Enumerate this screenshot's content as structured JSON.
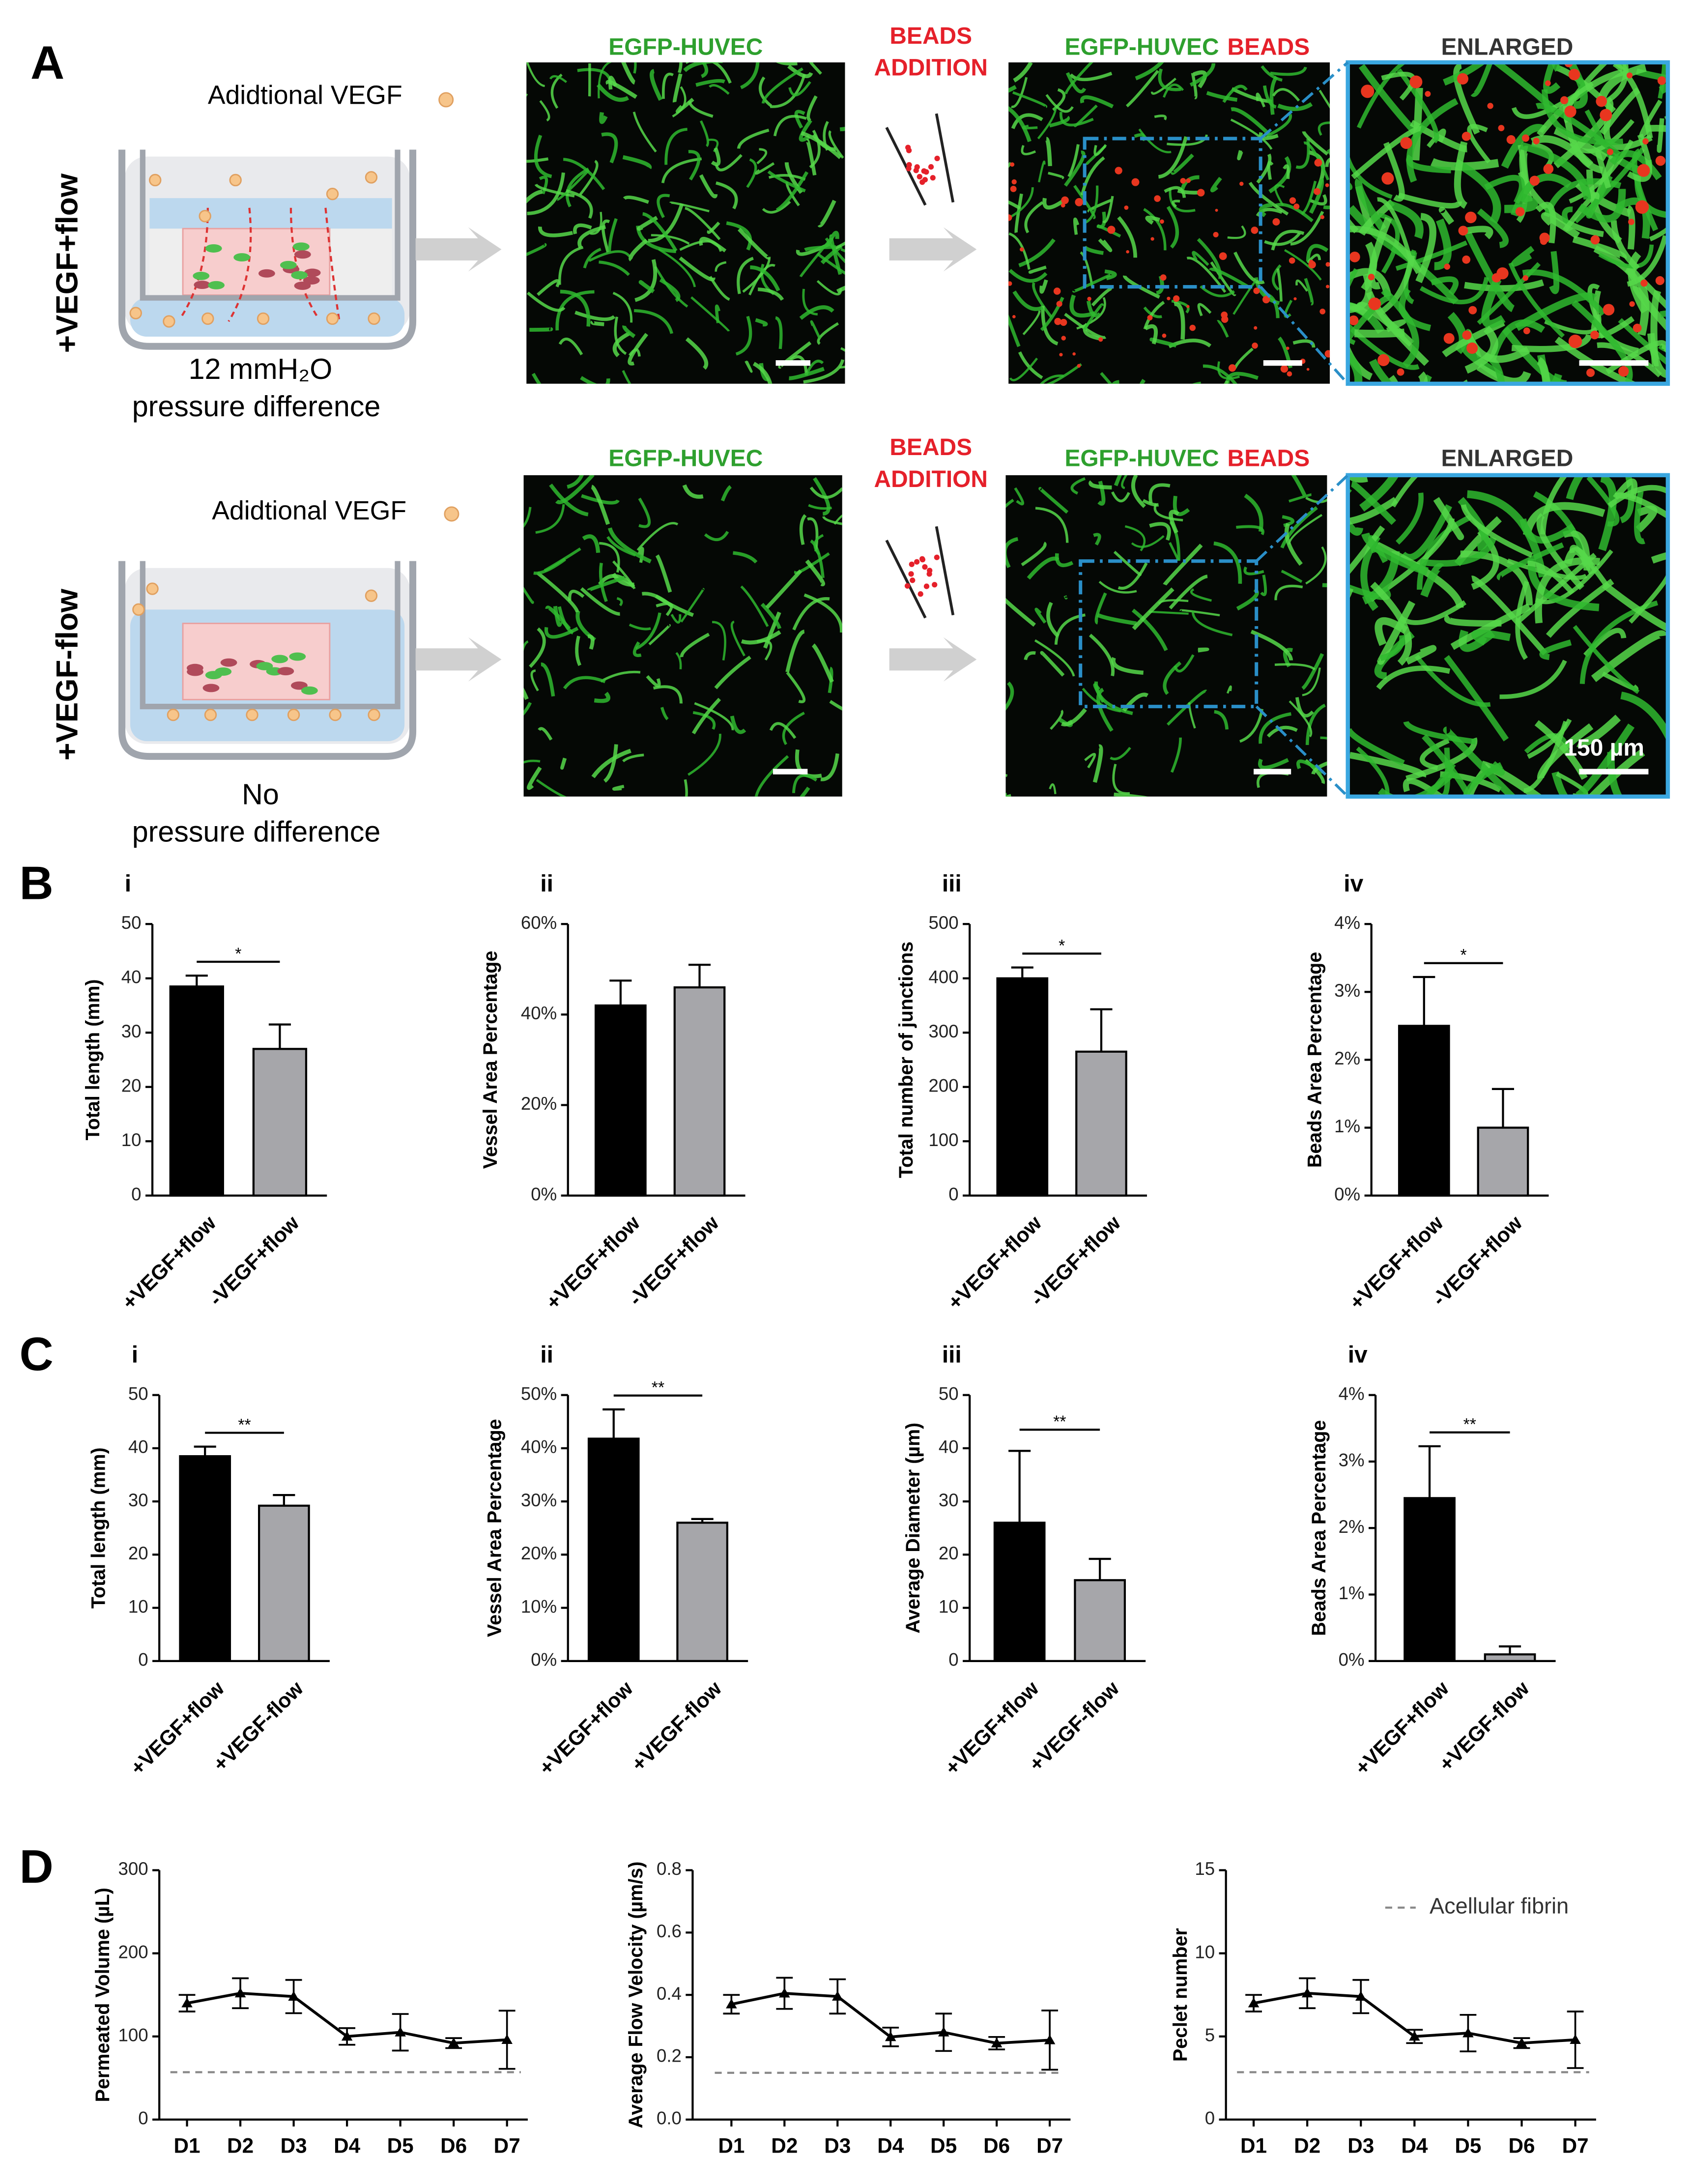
{
  "panel_labels": [
    "A",
    "B",
    "C",
    "D"
  ],
  "panel_a": {
    "scale_bar_label": "150 µm",
    "rows": [
      {
        "condition": "+VEGF+flow",
        "vegf_label": "Adidtional VEGF",
        "pressure_lines": [
          "12 mmH₂O",
          "pressure difference"
        ],
        "raw_title": "EGFP-HUVEC",
        "addition_lines": [
          "BEADS",
          "ADDITION"
        ],
        "merged_title": [
          "EGFP-HUVEC",
          "BEADS"
        ],
        "enlarged_title": "ENLARGED"
      },
      {
        "condition": "+VEGF-flow",
        "vegf_label": "Adidtional VEGF",
        "pressure_lines": [
          "No",
          "pressure difference"
        ],
        "raw_title": "EGFP-HUVEC",
        "addition_lines": [
          "BEADS",
          "ADDITION"
        ],
        "merged_title": [
          "EGFP-HUVEC",
          "BEADS"
        ],
        "enlarged_title": "ENLARGED"
      }
    ]
  },
  "chart_data": [
    {
      "type": "bar",
      "label": "i",
      "ylabel": "Total length (mm)",
      "categories": [
        "+VEGF+flow",
        "-VEGF+flow"
      ],
      "values": [
        38.5,
        27
      ],
      "errors": [
        2,
        4.5
      ],
      "colors": [
        "#000000",
        "#a6a6aa"
      ],
      "ylim": [
        0,
        50
      ],
      "yticks": [
        0,
        10,
        20,
        30,
        40,
        50
      ],
      "significance": "*"
    },
    {
      "type": "bar",
      "label": "ii",
      "ylabel": "Vessel Area Percentage",
      "categories": [
        "+VEGF+flow",
        "-VEGF+flow"
      ],
      "values": [
        42,
        46
      ],
      "errors": [
        5.5,
        5
      ],
      "colors": [
        "#000000",
        "#a6a6aa"
      ],
      "ylim": [
        0,
        60
      ],
      "yticks": [
        {
          "value": 0,
          "label": "0%"
        },
        {
          "value": 20,
          "label": "20%"
        },
        {
          "value": 40,
          "label": "40%"
        },
        {
          "value": 60,
          "label": "60%"
        }
      ]
    },
    {
      "type": "bar",
      "label": "iii",
      "ylabel": "Total number of junctions",
      "categories": [
        "+VEGF+flow",
        "-VEGF+flow"
      ],
      "values": [
        400,
        265
      ],
      "errors": [
        20,
        78
      ],
      "colors": [
        "#000000",
        "#a6a6aa"
      ],
      "ylim": [
        0,
        500
      ],
      "yticks": [
        0,
        100,
        200,
        300,
        400,
        500
      ],
      "significance": "*"
    },
    {
      "type": "bar",
      "label": "iv",
      "ylabel": "Beads Area Percentage",
      "categories": [
        "+VEGF+flow",
        "-VEGF+flow"
      ],
      "values": [
        2.5,
        1.0
      ],
      "errors": [
        0.72,
        0.57
      ],
      "colors": [
        "#000000",
        "#a6a6aa"
      ],
      "ylim": [
        0,
        4
      ],
      "yticks": [
        {
          "value": 0,
          "label": "0%"
        },
        {
          "value": 1,
          "label": "1%"
        },
        {
          "value": 2,
          "label": "2%"
        },
        {
          "value": 3,
          "label": "3%"
        },
        {
          "value": 4,
          "label": "4%"
        }
      ],
      "significance": "*"
    },
    {
      "type": "bar",
      "label": "i",
      "ylabel": "Total length (mm)",
      "categories": [
        "+VEGF+flow",
        "+VEGF-flow"
      ],
      "values": [
        38.5,
        29.2
      ],
      "errors": [
        1.8,
        2
      ],
      "colors": [
        "#000000",
        "#a6a6aa"
      ],
      "ylim": [
        0,
        50
      ],
      "yticks": [
        0,
        10,
        20,
        30,
        40,
        50
      ],
      "significance": "**"
    },
    {
      "type": "bar",
      "label": "ii",
      "ylabel": "Vessel Area Percentage",
      "categories": [
        "+VEGF+flow",
        "+VEGF-flow"
      ],
      "values": [
        41.8,
        26
      ],
      "errors": [
        5.5,
        0.7
      ],
      "colors": [
        "#000000",
        "#a6a6aa"
      ],
      "ylim": [
        0,
        50
      ],
      "yticks": [
        {
          "value": 0,
          "label": "0%"
        },
        {
          "value": 10,
          "label": "10%"
        },
        {
          "value": 20,
          "label": "20%"
        },
        {
          "value": 30,
          "label": "30%"
        },
        {
          "value": 40,
          "label": "40%"
        },
        {
          "value": 50,
          "label": "50%"
        }
      ],
      "significance": "**"
    },
    {
      "type": "bar",
      "label": "iii",
      "ylabel": "Average Diameter (µm)",
      "categories": [
        "+VEGF+flow",
        "+VEGF-flow"
      ],
      "values": [
        26,
        15.2
      ],
      "errors": [
        13.5,
        4
      ],
      "colors": [
        "#000000",
        "#a6a6aa"
      ],
      "ylim": [
        0,
        50
      ],
      "yticks": [
        0,
        10,
        20,
        30,
        40,
        50
      ],
      "significance": "**"
    },
    {
      "type": "bar",
      "label": "iv",
      "ylabel": "Beads Area Percentage",
      "categories": [
        "+VEGF+flow",
        "+VEGF-flow"
      ],
      "values": [
        2.45,
        0.1
      ],
      "errors": [
        0.78,
        0.12
      ],
      "colors": [
        "#000000",
        "#a6a6aa"
      ],
      "ylim": [
        0,
        4
      ],
      "yticks": [
        {
          "value": 0,
          "label": "0%"
        },
        {
          "value": 1,
          "label": "1%"
        },
        {
          "value": 2,
          "label": "2%"
        },
        {
          "value": 3,
          "label": "3%"
        },
        {
          "value": 4,
          "label": "4%"
        }
      ],
      "significance": "**"
    },
    {
      "type": "line",
      "ylabel": "Permeated Volume (µL)",
      "categories": [
        "D1",
        "D2",
        "D3",
        "D4",
        "D5",
        "D6",
        "D7"
      ],
      "values": [
        140,
        152,
        148,
        100,
        105,
        92,
        96
      ],
      "errors": [
        10,
        18,
        20,
        10,
        22,
        6,
        35
      ],
      "color": "#000000",
      "ylim": [
        0,
        300
      ],
      "yticks": [
        0,
        100,
        200,
        300
      ],
      "reference_value": 57
    },
    {
      "type": "line",
      "ylabel": "Average Flow Velocity (µm/s)",
      "categories": [
        "D1",
        "D2",
        "D3",
        "D4",
        "D5",
        "D6",
        "D7"
      ],
      "values": [
        0.37,
        0.405,
        0.395,
        0.265,
        0.28,
        0.245,
        0.255
      ],
      "errors": [
        0.03,
        0.05,
        0.055,
        0.03,
        0.06,
        0.02,
        0.095
      ],
      "color": "#000000",
      "ylim": [
        0,
        0.8
      ],
      "yticks": [
        {
          "value": 0,
          "label": "0.0"
        },
        0.2,
        0.4,
        0.6,
        0.8
      ],
      "reference_value": 0.15
    },
    {
      "type": "line",
      "ylabel": "Peclet   number",
      "categories": [
        "D1",
        "D2",
        "D3",
        "D4",
        "D5",
        "D6",
        "D7"
      ],
      "values": [
        7,
        7.6,
        7.4,
        5,
        5.2,
        4.6,
        4.8
      ],
      "errors": [
        0.5,
        0.9,
        1,
        0.4,
        1.1,
        0.3,
        1.7
      ],
      "color": "#000000",
      "ylim": [
        0,
        15
      ],
      "yticks": [
        0,
        5,
        10,
        15
      ],
      "reference_value": 2.85,
      "legend": "Acellular fibrin"
    }
  ]
}
